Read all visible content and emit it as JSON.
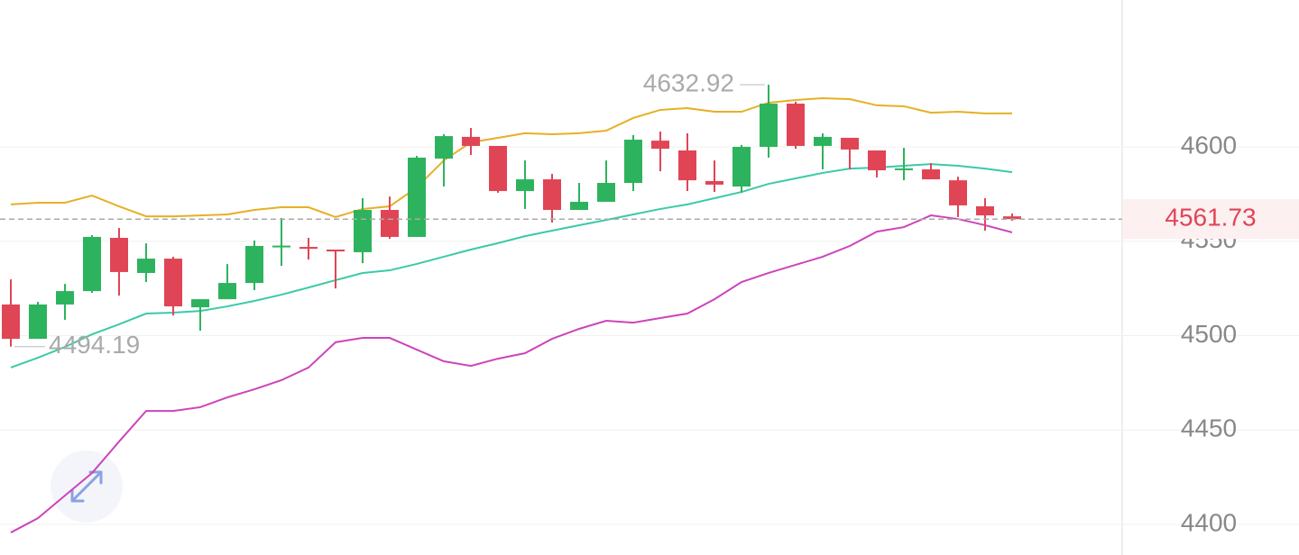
{
  "chart_data": {
    "type": "candlestick",
    "up_color": "#2db35d",
    "down_color": "#e04556",
    "open": [
      4516.5,
      4498.3,
      4516.5,
      4523.6,
      4551.8,
      4533.2,
      4540.8,
      4515.0,
      4519.3,
      4527.9,
      4547.5,
      4547.0,
      4545.6,
      4544.2,
      4566.6,
      4552.3,
      4593.8,
      4605.3,
      4600.5,
      4576.6,
      4582.8,
      4566.6,
      4570.9,
      4580.9,
      4603.3,
      4598.1,
      4581.9,
      4579.0,
      4600.0,
      4622.9,
      4600.5,
      4604.8,
      4598.1,
      4588.1,
      4588.1,
      4582.3,
      4568.5,
      4563.2
    ],
    "high": [
      4529.8,
      4517.9,
      4527.4,
      4553.2,
      4557.0,
      4548.9,
      4541.8,
      4519.3,
      4537.9,
      4550.4,
      4562.3,
      4551.8,
      4545.6,
      4572.8,
      4573.7,
      4595.2,
      4606.7,
      4610.0,
      4600.5,
      4592.8,
      4585.7,
      4580.9,
      4592.8,
      4606.2,
      4608.1,
      4607.2,
      4592.8,
      4601.0,
      4632.92,
      4623.9,
      4607.2,
      4604.8,
      4598.1,
      4599.5,
      4591.4,
      4584.2,
      4572.8,
      4564.7
    ],
    "low": [
      4494.19,
      4498.3,
      4508.4,
      4522.7,
      4521.2,
      4528.4,
      4510.7,
      4502.6,
      4519.3,
      4524.1,
      4537.0,
      4540.3,
      4525.0,
      4538.4,
      4551.3,
      4552.3,
      4579.0,
      4595.7,
      4575.7,
      4567.1,
      4559.9,
      4566.6,
      4570.9,
      4576.6,
      4587.1,
      4576.6,
      4576.1,
      4575.7,
      4594.3,
      4599.0,
      4588.1,
      4588.1,
      4583.8,
      4582.3,
      4582.8,
      4562.8,
      4555.6,
      4560.9
    ],
    "close": [
      4498.3,
      4516.5,
      4523.6,
      4552.3,
      4533.7,
      4540.8,
      4515.5,
      4519.3,
      4527.9,
      4547.5,
      4547.7,
      4546.0,
      4544.6,
      4566.6,
      4552.3,
      4594.3,
      4605.7,
      4600.5,
      4576.6,
      4582.8,
      4566.6,
      4570.9,
      4580.9,
      4603.8,
      4599.0,
      4582.3,
      4580.0,
      4600.0,
      4622.9,
      4600.5,
      4605.3,
      4598.6,
      4587.6,
      4588.6,
      4582.8,
      4569.0,
      4563.7,
      4561.73
    ],
    "lines": [
      {
        "color": "#e6b026",
        "values": [
          4569.5,
          4570.4,
          4570.4,
          4574.2,
          4568.5,
          4563.2,
          4563.2,
          4563.7,
          4564.2,
          4566.6,
          4568.0,
          4568.0,
          4562.8,
          4567.1,
          4568.5,
          4578.5,
          4592.8,
          4602.4,
          4604.8,
          4607.2,
          4606.7,
          4607.2,
          4608.6,
          4615.3,
          4619.6,
          4620.5,
          4618.6,
          4618.6,
          4623.4,
          4624.8,
          4625.8,
          4625.3,
          4622.0,
          4621.5,
          4618.1,
          4618.6,
          4617.7,
          4617.7
        ]
      },
      {
        "color": "#3cc9a8",
        "values": [
          4483.1,
          4488.3,
          4494.0,
          4500.7,
          4506.0,
          4511.7,
          4512.2,
          4513.1,
          4515.5,
          4518.4,
          4521.7,
          4525.5,
          4529.4,
          4533.2,
          4534.6,
          4538.0,
          4541.8,
          4545.6,
          4549.0,
          4552.7,
          4555.6,
          4558.5,
          4561.3,
          4564.2,
          4567.1,
          4569.5,
          4572.8,
          4576.1,
          4580.4,
          4583.3,
          4586.2,
          4588.5,
          4589.0,
          4590.0,
          4590.9,
          4590.0,
          4588.5,
          4586.6
        ]
      },
      {
        "color": "#cc44bb",
        "values": [
          4395.7,
          4403.3,
          4415.3,
          4427.2,
          4443.9,
          4460.1,
          4460.1,
          4462.1,
          4467.3,
          4471.6,
          4476.4,
          4483.1,
          4496.5,
          4498.8,
          4498.8,
          4492.6,
          4486.4,
          4484.0,
          4487.8,
          4490.7,
          4498.3,
          4503.6,
          4507.9,
          4506.9,
          4509.3,
          4511.7,
          4519.3,
          4528.4,
          4533.2,
          4537.5,
          4541.8,
          4547.5,
          4555.1,
          4557.5,
          4563.7,
          4561.8,
          4558.5,
          4554.7
        ]
      }
    ],
    "ylim": [
      4383.8,
      4677.8
    ],
    "yticks": [
      4400,
      4450,
      4500,
      4550,
      4600
    ],
    "grid": true
  }
}
